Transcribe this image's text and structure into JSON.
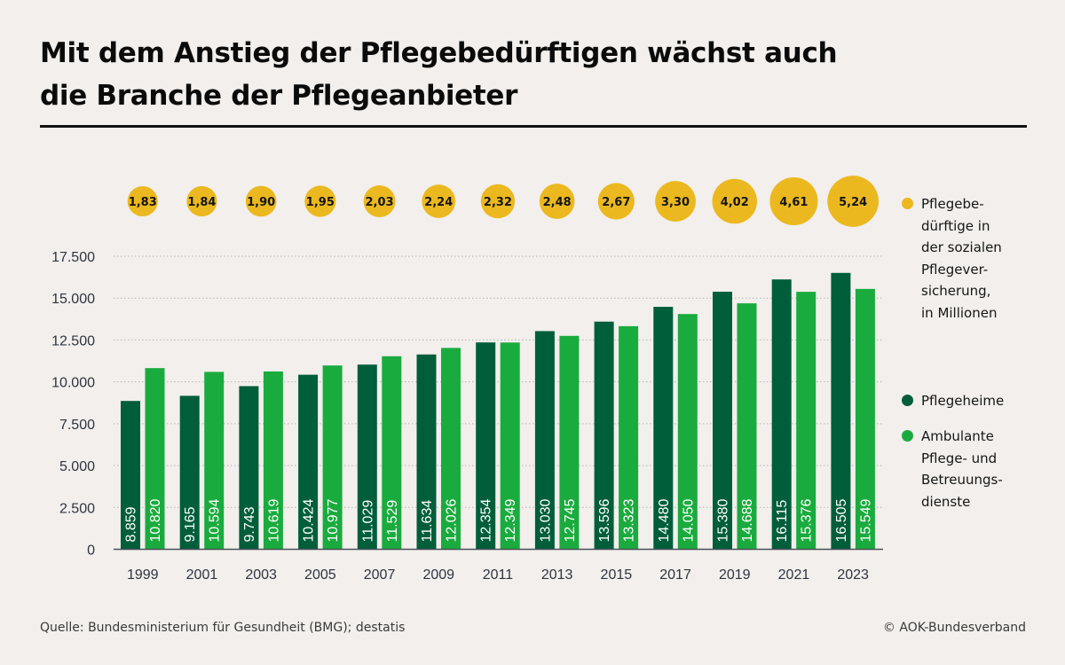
{
  "title": "Mit dem Anstieg der  Pflegebedürftigen wächst auch die Branche der Pflegeanbieter",
  "title_lines": [
    "Mit dem Anstieg der  Pflegebedürftigen wächst auch",
    "die Branche der Pflegeanbieter"
  ],
  "footer": {
    "source": "Quelle: Bundesministerium für Gesundheit (BMG); destatis",
    "copyright": "© AOK-Bundesverband"
  },
  "colors": {
    "background": "#f2efec",
    "pflegeheime": "#005e3a",
    "ambulant": "#1aab3e",
    "bubble": "#ebb91f",
    "grid": "#b5b5b5",
    "axis_text": "#2e3440"
  },
  "legend": [
    {
      "key": "bubble",
      "label": "Pflegebe-\ndürftige in\nder sozialen\nPflegever-\nsicherung,\nin Millionen",
      "color": "#ebb91f"
    },
    {
      "key": "pflegeheime",
      "label": "Pflegeheime",
      "color": "#005e3a"
    },
    {
      "key": "ambulant",
      "label": "Ambulante\nPflege- und\nBetreuungs-\ndienste",
      "color": "#1aab3e"
    }
  ],
  "chart_data": {
    "type": "bar",
    "title": "Mit dem Anstieg der  Pflegebedürftigen wächst auch die Branche der Pflegeanbieter",
    "xlabel": "",
    "ylabel": "",
    "categories": [
      "1999",
      "2001",
      "2003",
      "2005",
      "2007",
      "2009",
      "2011",
      "2013",
      "2015",
      "2017",
      "2019",
      "2021",
      "2023"
    ],
    "series": [
      {
        "name": "Pflegeheime",
        "color": "#005e3a",
        "values": [
          8859,
          9165,
          9743,
          10424,
          11029,
          11634,
          12354,
          13030,
          13596,
          14480,
          15380,
          16115,
          16505
        ],
        "labels": [
          "8.859",
          "9.165",
          "9.743",
          "10.424",
          "11.029",
          "11.634",
          "12.354",
          "13.030",
          "13.596",
          "14.480",
          "15.380",
          "16.115",
          "16.505"
        ]
      },
      {
        "name": "Ambulante Pflege- und Betreuungsdienste",
        "color": "#1aab3e",
        "values": [
          10820,
          10594,
          10619,
          10977,
          11529,
          12026,
          12349,
          12745,
          13323,
          14050,
          14688,
          15376,
          15549
        ],
        "labels": [
          "10.820",
          "10.594",
          "10.619",
          "10.977",
          "11.529",
          "12.026",
          "12.349",
          "12.745",
          "13.323",
          "14.050",
          "14.688",
          "15.376",
          "15.549"
        ]
      }
    ],
    "bubbles": {
      "name": "Pflegebedürftige in der sozialen Pflegeversicherung, in Millionen",
      "values": [
        1.83,
        1.84,
        1.9,
        1.95,
        2.03,
        2.24,
        2.32,
        2.48,
        2.67,
        3.3,
        4.02,
        4.61,
        5.24
      ],
      "labels": [
        "1,83",
        "1,84",
        "1,90",
        "1,95",
        "2,03",
        "2,24",
        "2,32",
        "2,48",
        "2,67",
        "3,30",
        "4,02",
        "4,61",
        "5,24"
      ]
    },
    "yticks": [
      0,
      2500,
      5000,
      7500,
      10000,
      12500,
      15000,
      17500
    ],
    "ytick_labels": [
      "0",
      "2.500",
      "5.000",
      "7.500",
      "10.000",
      "12.500",
      "15.000",
      "17.500"
    ],
    "ylim": [
      0,
      17500
    ],
    "grid": true,
    "legend_position": "right"
  }
}
